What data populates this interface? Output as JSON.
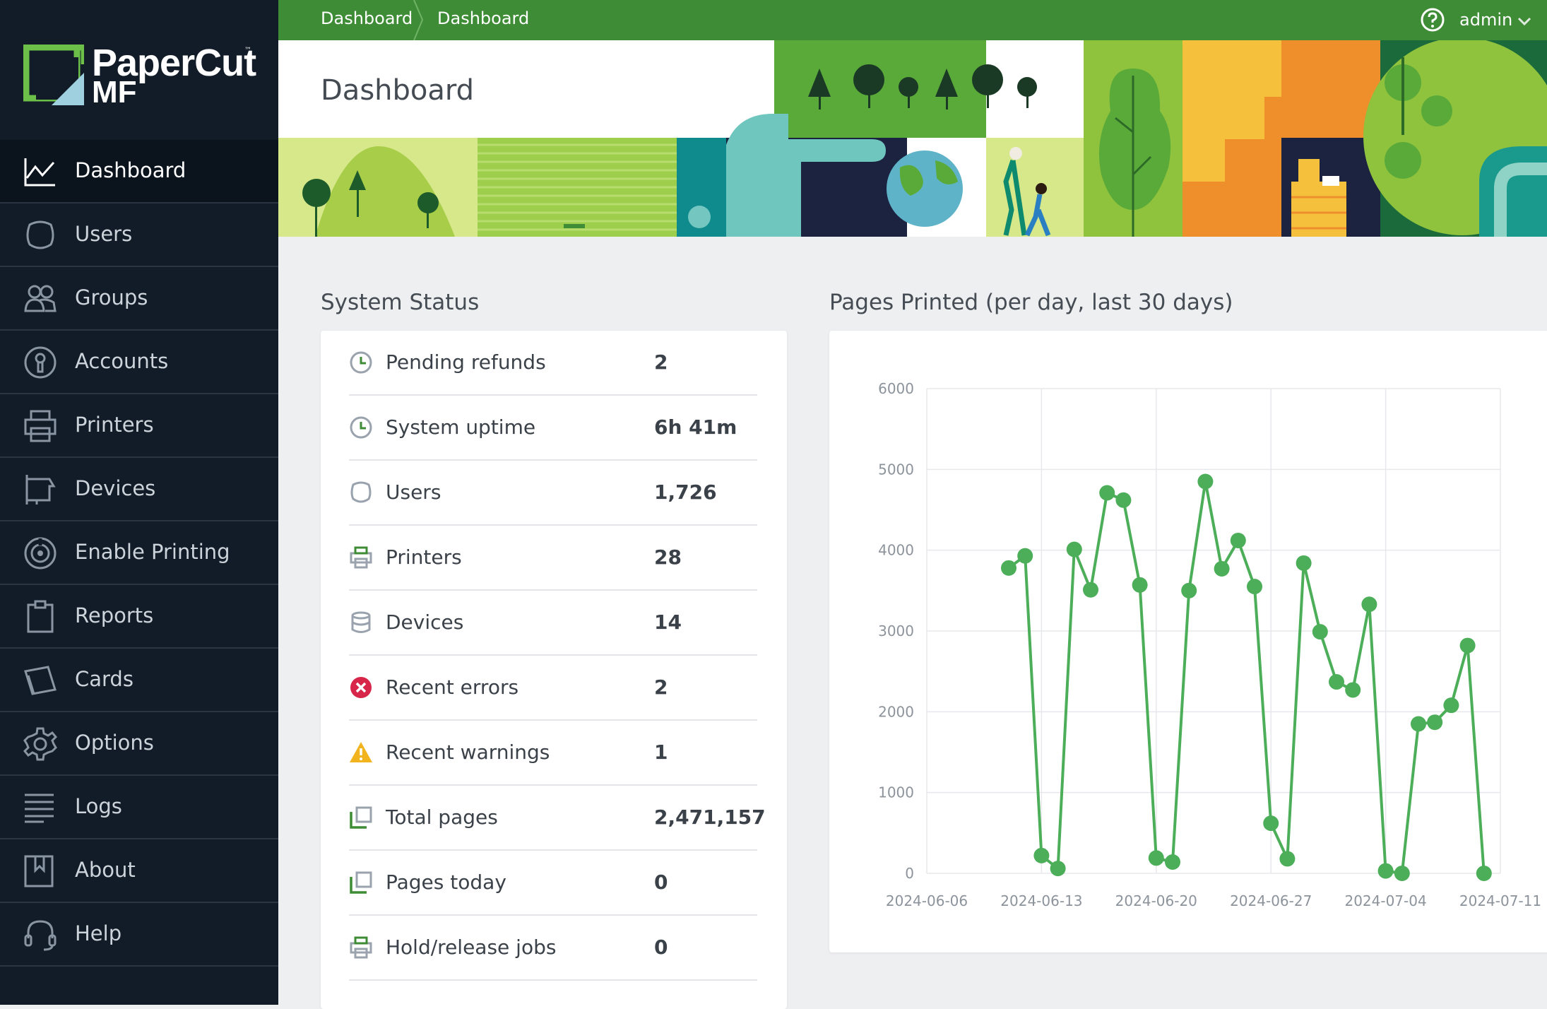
{
  "app": {
    "logo_text_1": "PaperCut",
    "logo_text_2": "MF",
    "logo_tm": "™"
  },
  "topbar": {
    "breadcrumb": [
      "Dashboard",
      "Dashboard"
    ],
    "user": "admin",
    "help_icon": "help-circle-icon",
    "chevron_icon": "chevron-down-icon"
  },
  "page": {
    "title": "Dashboard"
  },
  "sidebar": {
    "items": [
      {
        "label": "Dashboard",
        "icon": "chart-line-icon",
        "active": true
      },
      {
        "label": "Users",
        "icon": "user-icon"
      },
      {
        "label": "Groups",
        "icon": "groups-icon"
      },
      {
        "label": "Accounts",
        "icon": "accounts-icon"
      },
      {
        "label": "Printers",
        "icon": "printer-icon"
      },
      {
        "label": "Devices",
        "icon": "device-icon"
      },
      {
        "label": "Enable Printing",
        "icon": "enable-printing-icon"
      },
      {
        "label": "Reports",
        "icon": "clipboard-icon"
      },
      {
        "label": "Cards",
        "icon": "cards-icon"
      },
      {
        "label": "Options",
        "icon": "gear-icon"
      },
      {
        "label": "Logs",
        "icon": "list-icon"
      },
      {
        "label": "About",
        "icon": "bookmark-icon"
      },
      {
        "label": "Help",
        "icon": "headset-icon"
      }
    ]
  },
  "system_status": {
    "title": "System Status",
    "rows": [
      {
        "label": "Pending refunds",
        "value": "2",
        "icon": "clock-icon"
      },
      {
        "label": "System uptime",
        "value": "6h 41m",
        "icon": "clock-icon"
      },
      {
        "label": "Users",
        "value": "1,726",
        "icon": "user-icon"
      },
      {
        "label": "Printers",
        "value": "28",
        "icon": "printer-icon"
      },
      {
        "label": "Devices",
        "value": "14",
        "icon": "database-icon"
      },
      {
        "label": "Recent errors",
        "value": "2",
        "icon": "error-icon"
      },
      {
        "label": "Recent warnings",
        "value": "1",
        "icon": "warning-icon"
      },
      {
        "label": "Total pages",
        "value": "2,471,157",
        "icon": "pages-icon"
      },
      {
        "label": "Pages today",
        "value": "0",
        "icon": "pages-icon"
      },
      {
        "label": "Hold/release jobs",
        "value": "0",
        "icon": "printer-icon"
      }
    ]
  },
  "colors": {
    "sidebar_bg": "#121c28",
    "topbar": "#3e8c35",
    "series": "#4cae59",
    "error": "#d7264a",
    "warning": "#f2b41e"
  },
  "chart_data": {
    "type": "line",
    "title": "Pages Printed (per day, last 30 days)",
    "xlabel": "",
    "ylabel": "",
    "ylim": [
      0,
      6000
    ],
    "yticks": [
      0,
      1000,
      2000,
      3000,
      4000,
      5000,
      6000
    ],
    "xticks": [
      "2024-06-06",
      "2024-06-13",
      "2024-06-20",
      "2024-06-27",
      "2024-07-04",
      "2024-07-11"
    ],
    "grid": true,
    "series": [
      {
        "x": [
          "2024-06-11",
          "2024-06-12",
          "2024-06-13",
          "2024-06-14",
          "2024-06-15",
          "2024-06-16",
          "2024-06-17",
          "2024-06-18",
          "2024-06-19",
          "2024-06-20",
          "2024-06-21",
          "2024-06-22",
          "2024-06-23",
          "2024-06-24",
          "2024-06-25",
          "2024-06-26",
          "2024-06-27",
          "2024-06-28",
          "2024-06-29",
          "2024-06-30",
          "2024-07-01",
          "2024-07-02",
          "2024-07-03",
          "2024-07-04",
          "2024-07-05",
          "2024-07-06",
          "2024-07-07",
          "2024-07-08",
          "2024-07-09",
          "2024-07-10",
          "2024-07-11"
        ],
        "values": [
          3780,
          3930,
          220,
          60,
          4010,
          3510,
          4710,
          4620,
          3570,
          190,
          140,
          3500,
          4850,
          3770,
          4120,
          3550,
          620,
          180,
          3840,
          2990,
          2370,
          2270,
          3330,
          30,
          0,
          1850,
          1870,
          2080,
          2820,
          0,
          null
        ]
      }
    ]
  }
}
